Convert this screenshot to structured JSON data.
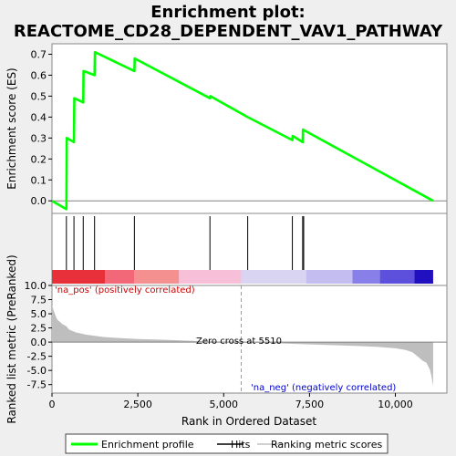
{
  "chart_data": {
    "type": "line",
    "title": "Enrichment plot:",
    "subtitle": "REACTOME_CD28_DEPENDENT_VAV1_PATHWAY",
    "xlabel": "Rank in Ordered Dataset",
    "ylabel_top": "Enrichment score (ES)",
    "ylabel_bottom": "Ranked list metric (PreRanked)",
    "xlim": [
      0,
      11500
    ],
    "x_ticks": [
      0,
      2500,
      5000,
      7500,
      10000
    ],
    "x_tick_labels": [
      "0",
      "2,500",
      "5,000",
      "7,500",
      "10,000"
    ],
    "es_ylim": [
      -0.06,
      0.75
    ],
    "es_ticks": [
      0.0,
      0.1,
      0.2,
      0.3,
      0.4,
      0.5,
      0.6,
      0.7
    ],
    "es_tick_labels": [
      "0.0",
      "0.1",
      "0.2",
      "0.3",
      "0.4",
      "0.5",
      "0.6",
      "0.7"
    ],
    "metric_ylim": [
      -9.0,
      10.0
    ],
    "metric_ticks": [
      10.0,
      7.5,
      5.0,
      2.5,
      0.0,
      -2.5,
      -5.0,
      -7.5
    ],
    "metric_tick_labels": [
      "10.0",
      "7.5",
      "5.0",
      "2.5",
      "0.0",
      "-2.5",
      "-5.0",
      "-7.5"
    ],
    "series": [
      {
        "name": "Enrichment profile",
        "color": "#00ff00",
        "x": [
          0,
          420,
          430,
          640,
          650,
          910,
          920,
          1240,
          1250,
          2400,
          2410,
          4600,
          4610,
          5700,
          7000,
          7010,
          7300,
          7310,
          11100
        ],
        "y": [
          0.0,
          -0.04,
          0.3,
          0.28,
          0.49,
          0.47,
          0.62,
          0.6,
          0.71,
          0.62,
          0.68,
          0.49,
          0.5,
          0.4,
          0.29,
          0.31,
          0.28,
          0.34,
          0.0
        ]
      }
    ],
    "hits": [
      420,
      640,
      910,
      1240,
      2400,
      4600,
      5700,
      7000,
      7300,
      7330
    ],
    "metric_curve": {
      "x": [
        0,
        50,
        150,
        300,
        420,
        500,
        700,
        1000,
        1500,
        2000,
        2500,
        3000,
        3500,
        4000,
        4500,
        5000,
        5510,
        6000,
        7000,
        8000,
        9000,
        9500,
        10000,
        10300,
        10500,
        10700,
        10800,
        10900,
        11000,
        11050,
        11100
      ],
      "y": [
        6.5,
        5.5,
        4.0,
        3.2,
        2.8,
        2.2,
        1.7,
        1.3,
        0.9,
        0.7,
        0.55,
        0.45,
        0.35,
        0.25,
        0.15,
        0.08,
        0.0,
        -0.1,
        -0.3,
        -0.5,
        -0.7,
        -0.85,
        -1.1,
        -1.4,
        -1.8,
        -2.8,
        -3.3,
        -3.6,
        -4.8,
        -6.0,
        -7.8
      ]
    },
    "heat_bands": [
      {
        "x0": 0,
        "x1": 1550,
        "color": "#e8303a"
      },
      {
        "x0": 1550,
        "x1": 2400,
        "color": "#f26878"
      },
      {
        "x0": 2400,
        "x1": 3700,
        "color": "#f59090"
      },
      {
        "x0": 3700,
        "x1": 5510,
        "color": "#f8c0d8"
      },
      {
        "x0": 5510,
        "x1": 7400,
        "color": "#d8d4f2"
      },
      {
        "x0": 7400,
        "x1": 8750,
        "color": "#c4bef0"
      },
      {
        "x0": 8750,
        "x1": 9550,
        "color": "#8880e8"
      },
      {
        "x0": 9550,
        "x1": 10550,
        "color": "#5d50dc"
      },
      {
        "x0": 10550,
        "x1": 11100,
        "color": "#2010c0"
      }
    ],
    "annotations": {
      "pos_label": "'na_pos' (positively correlated)",
      "neg_label": "'na_neg' (negatively correlated)",
      "zero_cross_label": "Zero cross at 5510",
      "zero_cross_x": 5510
    },
    "legend": {
      "placement": "bottom",
      "items": [
        {
          "label": "Enrichment profile",
          "color": "#00ff00"
        },
        {
          "label": "Hits",
          "color": "#000000"
        },
        {
          "label": "Ranking metric scores",
          "color": "#c0c0c0"
        }
      ]
    },
    "colors": {
      "enrichment": "#00ff00",
      "metric_fill": "#bebebe",
      "pos_label": "#cc0000",
      "neg_label": "#0000cc"
    }
  }
}
